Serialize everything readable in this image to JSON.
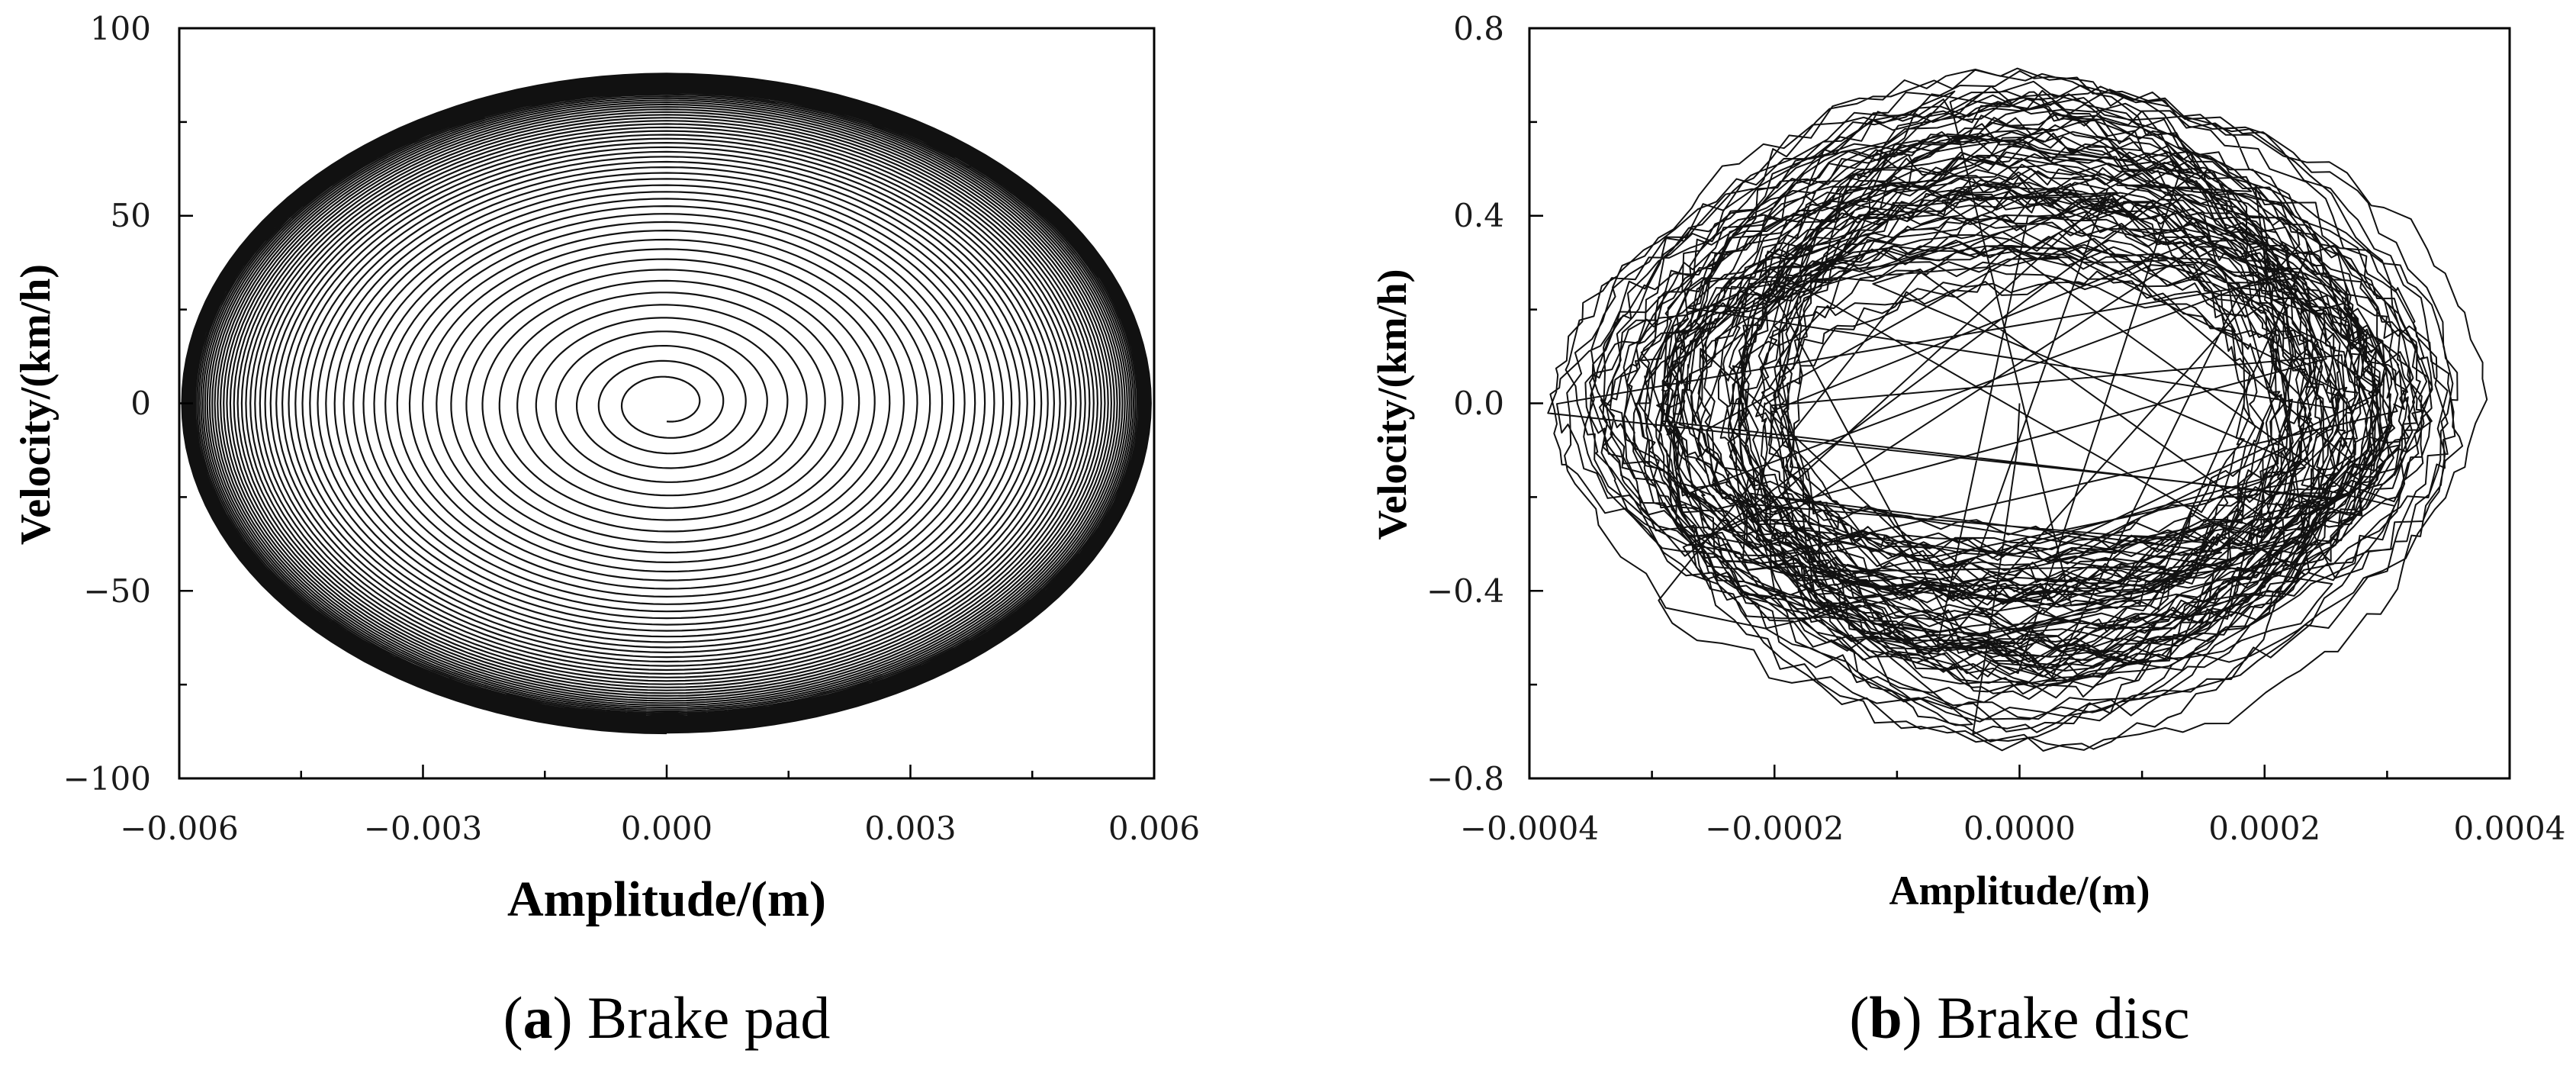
{
  "chart_data": [
    {
      "type": "line",
      "panel_label": "a",
      "caption": "Brake pad",
      "xlabel": "Amplitude/(m)",
      "ylabel": "Velocity/(km/h)",
      "xlim": [
        -0.006,
        0.006
      ],
      "ylim": [
        -100,
        100
      ],
      "x_ticks": [
        -0.006,
        -0.003,
        0.0,
        0.003,
        0.006
      ],
      "x_tick_labels": [
        "−0.006",
        "−0.003",
        "0.000",
        "0.003",
        "0.006"
      ],
      "y_ticks": [
        -100,
        -50,
        0,
        50,
        100
      ],
      "y_tick_labels": [
        "−100",
        "−50",
        "0",
        "50",
        "100"
      ],
      "series": [
        {
          "style": "outward spiral (phase trajectory)",
          "start": [
            0.0,
            -5
          ],
          "max_amplitude": 0.006,
          "max_velocity": 88,
          "turns": 62,
          "color": "#111111"
        }
      ]
    },
    {
      "type": "line",
      "panel_label": "b",
      "caption": "Brake disc",
      "xlabel": "Amplitude/(m)",
      "ylabel": "Velocity/(km/h)",
      "xlim": [
        -0.0004,
        0.0004
      ],
      "ylim": [
        -0.8,
        0.8
      ],
      "x_ticks": [
        -0.0004,
        -0.0002,
        0.0,
        0.0002,
        0.0004
      ],
      "x_tick_labels": [
        "−0.0004",
        "−0.0002",
        "0.0000",
        "0.0002",
        "0.0004"
      ],
      "y_ticks": [
        -0.8,
        -0.4,
        0.0,
        0.4,
        0.8
      ],
      "y_tick_labels": [
        "−0.8",
        "−0.4",
        "0.0",
        "0.4",
        "0.8"
      ],
      "series": [
        {
          "style": "chaotic irregular orbits",
          "start": [
            0.0,
            0.0
          ],
          "amplitude_range": [
            0.0002,
            0.00036
          ],
          "velocity_range": [
            0.3,
            0.7
          ],
          "color": "#111111"
        }
      ]
    }
  ]
}
